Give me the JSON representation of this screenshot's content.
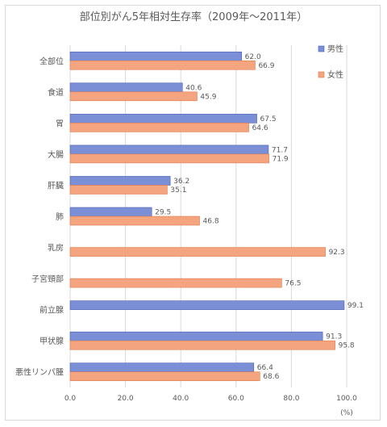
{
  "chart_data": {
    "type": "bar",
    "orientation": "horizontal",
    "title": "部位別がん5年相対生存率（2009年～2011年）",
    "unit_label": "(%)",
    "categories": [
      "全部位",
      "食道",
      "胃",
      "大腸",
      "肝臓",
      "肺",
      "乳房",
      "子宮頸部",
      "前立腺",
      "甲状腺",
      "悪性リンパ腫"
    ],
    "series": [
      {
        "name": "男性",
        "color": "#7b8fd6",
        "values": [
          62.0,
          40.6,
          67.5,
          71.7,
          36.2,
          29.5,
          null,
          null,
          99.1,
          91.3,
          66.4
        ]
      },
      {
        "name": "女性",
        "color": "#f4a57f",
        "values": [
          66.9,
          45.9,
          64.6,
          71.9,
          35.1,
          46.8,
          92.3,
          76.5,
          null,
          95.8,
          68.6
        ]
      }
    ],
    "xlim": [
      0,
      100
    ],
    "xticks": [
      "0.0",
      "20.0",
      "40.0",
      "60.0",
      "80.0",
      "100.0"
    ],
    "grid": true,
    "legend_position": "top-right"
  }
}
